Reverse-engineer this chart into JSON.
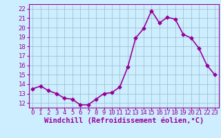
{
  "x": [
    0,
    1,
    2,
    3,
    4,
    5,
    6,
    7,
    8,
    9,
    10,
    11,
    12,
    13,
    14,
    15,
    16,
    17,
    18,
    19,
    20,
    21,
    22,
    23
  ],
  "y": [
    13.5,
    13.8,
    13.3,
    13.0,
    12.5,
    12.4,
    11.8,
    11.8,
    12.4,
    13.0,
    13.1,
    13.7,
    15.8,
    18.9,
    19.9,
    21.8,
    20.5,
    21.1,
    20.9,
    19.3,
    18.9,
    17.8,
    16.0,
    15.0
  ],
  "line_color": "#990099",
  "marker": "D",
  "marker_size": 2.5,
  "xlabel": "Windchill (Refroidissement éolien,°C)",
  "xlabel_fontsize": 7.5,
  "ylim": [
    11.5,
    22.5
  ],
  "xlim": [
    -0.5,
    23.5
  ],
  "yticks": [
    12,
    13,
    14,
    15,
    16,
    17,
    18,
    19,
    20,
    21,
    22
  ],
  "xticks": [
    0,
    1,
    2,
    3,
    4,
    5,
    6,
    7,
    8,
    9,
    10,
    11,
    12,
    13,
    14,
    15,
    16,
    17,
    18,
    19,
    20,
    21,
    22,
    23
  ],
  "bg_color": "#cceeff",
  "grid_color": "#99bbcc",
  "tick_label_color": "#990099",
  "tick_label_fontsize": 6.5,
  "line_width": 1.2
}
